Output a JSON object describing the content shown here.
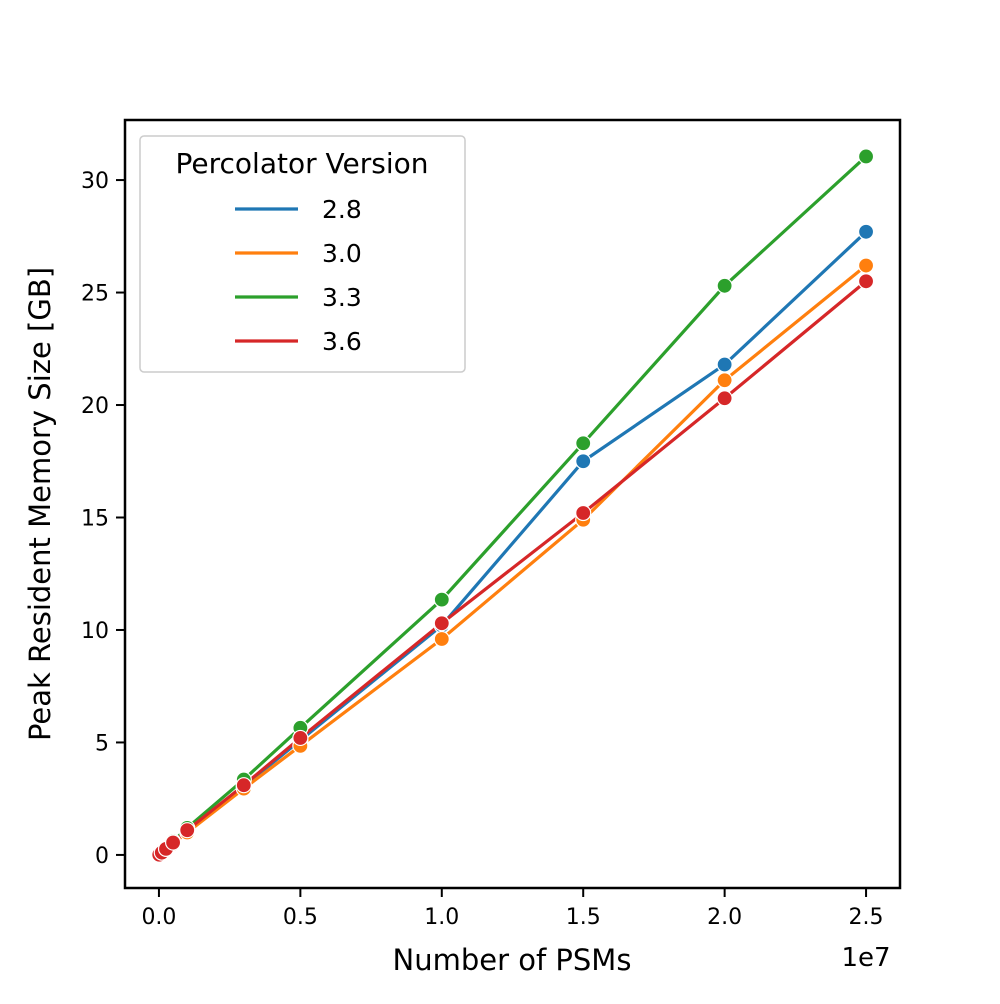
{
  "chart_data": {
    "type": "line",
    "x_label": "Number of PSMs",
    "y_label": "Peak Resident Memory Size [GB]",
    "x_offset_label": "1e7",
    "legend_title": "Percolator Version",
    "legend_position": "upper left",
    "x": [
      10000,
      100000,
      250000,
      500000,
      1000000,
      3000000,
      5000000,
      10000000,
      15000000,
      20000000,
      25000000
    ],
    "series": [
      {
        "name": "2.8",
        "color": "#1f77b4",
        "values": [
          0.01,
          0.1,
          0.27,
          0.55,
          1.1,
          3.05,
          5.1,
          10.2,
          17.5,
          21.8,
          27.7
        ]
      },
      {
        "name": "3.0",
        "color": "#ff7f0e",
        "values": [
          0.01,
          0.1,
          0.25,
          0.5,
          1.0,
          2.95,
          4.85,
          9.6,
          14.9,
          21.1,
          26.2
        ]
      },
      {
        "name": "3.3",
        "color": "#2ca02c",
        "values": [
          0.01,
          0.1,
          0.3,
          0.6,
          1.2,
          3.35,
          5.65,
          11.35,
          18.3,
          25.3,
          31.05
        ]
      },
      {
        "name": "3.6",
        "color": "#d62728",
        "values": [
          0.01,
          0.1,
          0.27,
          0.55,
          1.1,
          3.1,
          5.2,
          10.3,
          15.2,
          20.3,
          25.5
        ]
      }
    ],
    "xlim": [
      -1200000,
      26200000
    ],
    "ylim": [
      -1.47,
      32.67
    ],
    "xticks": [
      {
        "value": 0,
        "label": "0.0"
      },
      {
        "value": 5000000,
        "label": "0.5"
      },
      {
        "value": 10000000,
        "label": "1.0"
      },
      {
        "value": 15000000,
        "label": "1.5"
      },
      {
        "value": 20000000,
        "label": "2.0"
      },
      {
        "value": 25000000,
        "label": "2.5"
      }
    ],
    "yticks": [
      0,
      5,
      10,
      15,
      20,
      25,
      30
    ],
    "grid": false
  }
}
